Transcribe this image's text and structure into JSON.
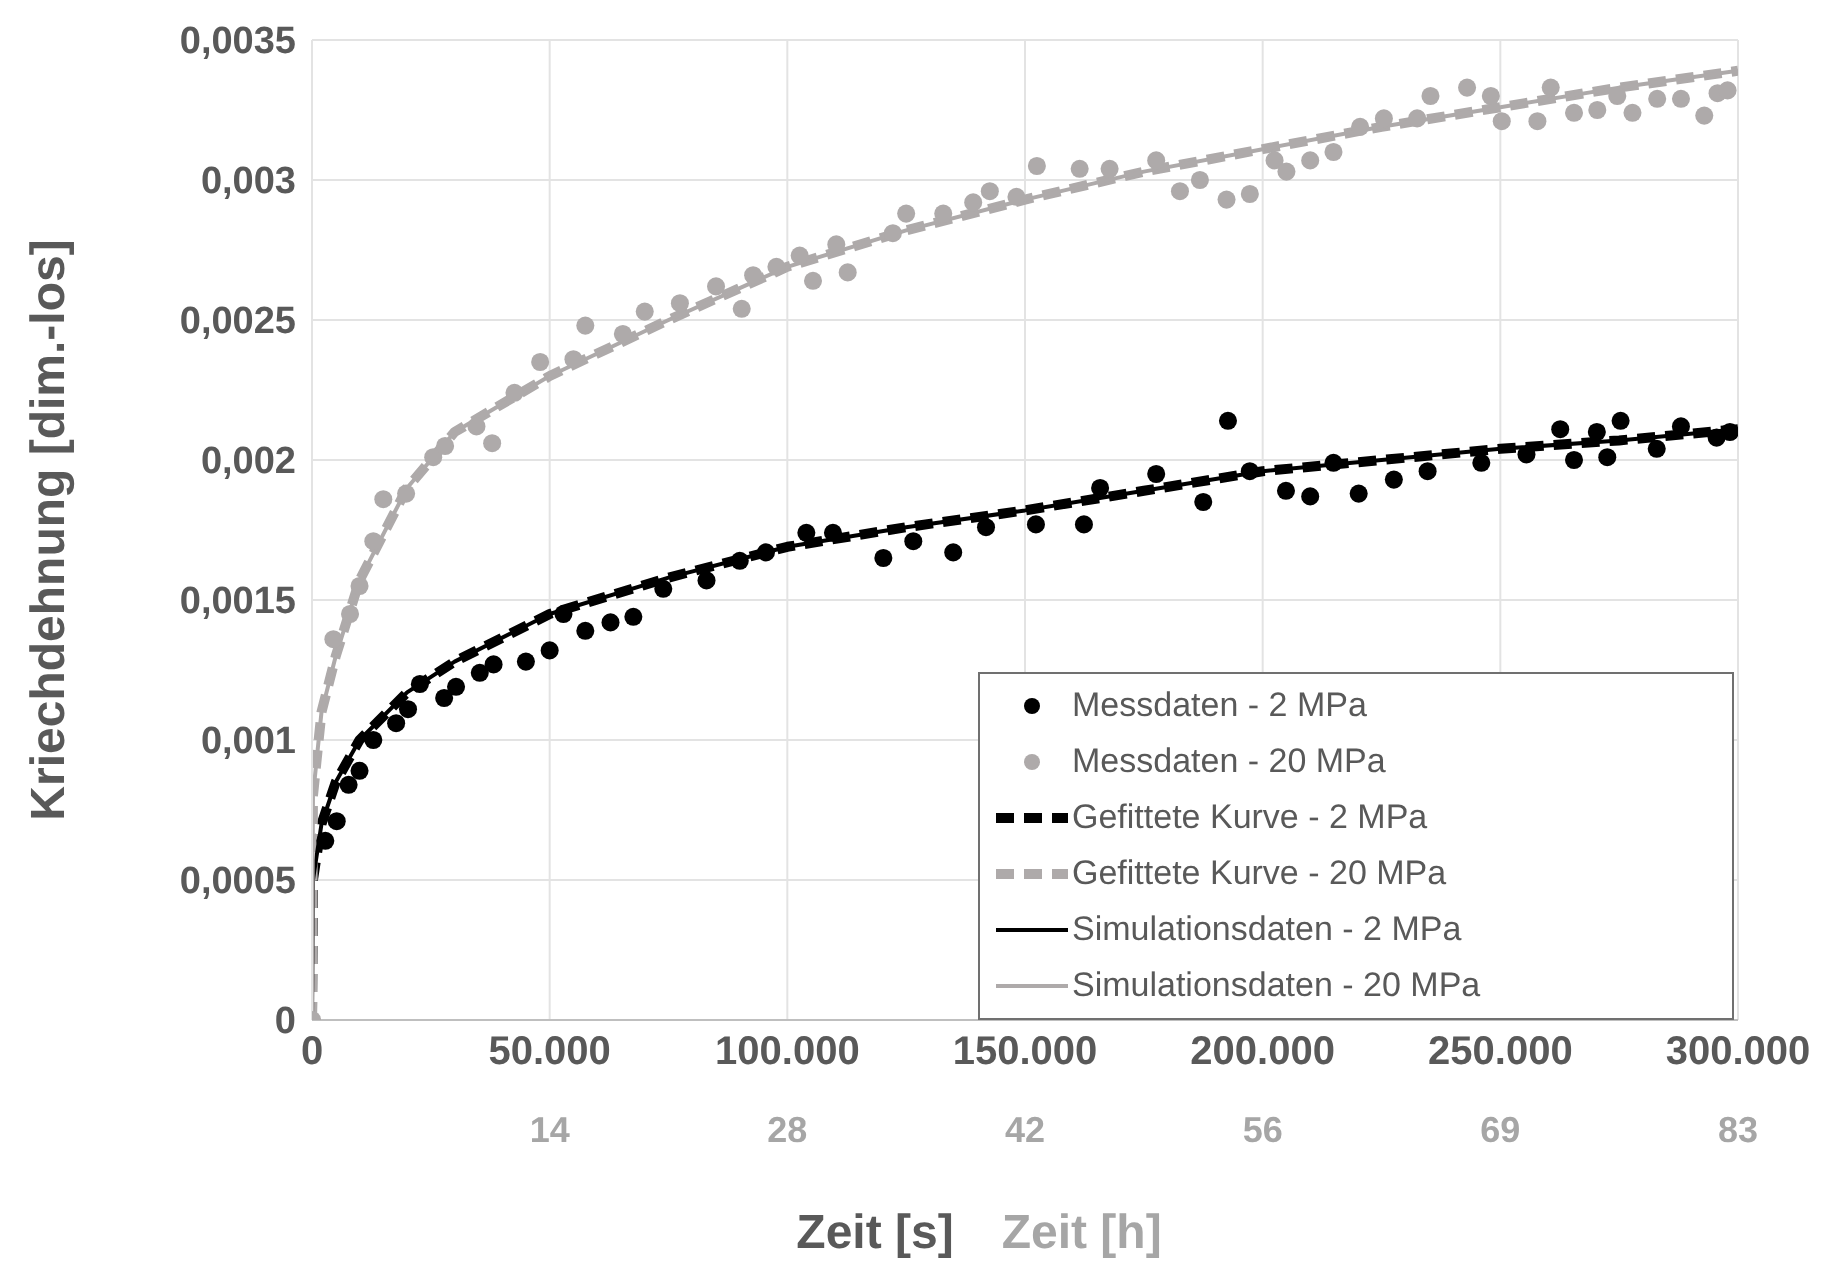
{
  "chart_data": {
    "type": "scatter",
    "xlabel": "Zeit [s]",
    "x2label": "Zeit [h]",
    "ylabel": "Kriechdehnung [dim.-los]",
    "xlim": [
      0,
      300000
    ],
    "xticks": [
      0,
      {
        "value": 50000,
        "label": "50.000"
      },
      {
        "value": 100000,
        "label": "100.000"
      },
      {
        "value": 150000,
        "label": "150.000"
      },
      {
        "value": 200000,
        "label": "200.000"
      },
      {
        "value": 250000,
        "label": "250.000"
      },
      {
        "value": 300000,
        "label": "300.000"
      }
    ],
    "x2lim": [
      0,
      83.333
    ],
    "x2ticks": [
      {
        "value": 13.889,
        "label": "14"
      },
      {
        "value": 27.778,
        "label": "28"
      },
      {
        "value": 41.667,
        "label": "42"
      },
      {
        "value": 55.556,
        "label": "56"
      },
      {
        "value": 69.444,
        "label": "69"
      },
      {
        "value": 83.333,
        "label": "83"
      }
    ],
    "ylim": [
      0,
      0.0035
    ],
    "yticks": [
      0,
      {
        "value": 0.0005,
        "label": "0,0005"
      },
      {
        "value": 0.001,
        "label": "0,001"
      },
      {
        "value": 0.0015,
        "label": "0,0015"
      },
      {
        "value": 0.002,
        "label": "0,002"
      },
      {
        "value": 0.0025,
        "label": "0,0025"
      },
      {
        "value": 0.003,
        "label": "0,003"
      },
      {
        "value": 0.0035,
        "label": "0,0035"
      }
    ],
    "grid": true,
    "legend": "bottom right",
    "series": [
      {
        "name": "Messdaten - 2 MPa",
        "marker": "circle",
        "color": "#000000",
        "x": [
          2800,
          5200,
          7700,
          10000,
          12900,
          17700,
          20200,
          22700,
          27800,
          30300,
          35300,
          38200,
          45000,
          50000,
          52900,
          57500,
          62800,
          67600,
          73900,
          83000,
          90000,
          95500,
          104000,
          109600,
          120200,
          126500,
          134900,
          141800,
          152300,
          162400,
          165800,
          177600,
          187500,
          192700,
          197300,
          204900,
          210000,
          214900,
          220200,
          227600,
          234700,
          246000,
          255500,
          262600,
          265500,
          270300,
          272500,
          275300,
          282900,
          288000,
          295500,
          298300
        ],
        "values": [
          0.00064,
          0.00071,
          0.00084,
          0.00089,
          0.001,
          0.00106,
          0.00111,
          0.0012,
          0.00115,
          0.00119,
          0.00124,
          0.00127,
          0.00128,
          0.00132,
          0.00145,
          0.00139,
          0.00142,
          0.00144,
          0.00154,
          0.00157,
          0.00164,
          0.00167,
          0.00174,
          0.00174,
          0.00165,
          0.00171,
          0.00167,
          0.00176,
          0.00177,
          0.00177,
          0.0019,
          0.00195,
          0.00185,
          0.00214,
          0.00196,
          0.00189,
          0.00187,
          0.00199,
          0.00188,
          0.00193,
          0.00196,
          0.00199,
          0.00202,
          0.00211,
          0.002,
          0.0021,
          0.00201,
          0.00214,
          0.00204,
          0.00212,
          0.00208,
          0.0021
        ]
      },
      {
        "name": "Messdaten - 20 MPa",
        "marker": "circle",
        "color": "#aeaaaa",
        "x": [
          0,
          4500,
          8000,
          10000,
          12900,
          15000,
          19800,
          25500,
          28000,
          34600,
          37900,
          42600,
          48000,
          55000,
          57500,
          65400,
          70000,
          77400,
          85000,
          90400,
          92800,
          97700,
          102600,
          105400,
          110300,
          112700,
          122200,
          125000,
          132800,
          139100,
          142600,
          148200,
          152500,
          161500,
          167800,
          177600,
          182600,
          186800,
          192400,
          197300,
          202500,
          205000,
          210000,
          214900,
          220500,
          225500,
          232500,
          235300,
          243000,
          248000,
          250300,
          257800,
          260600,
          265500,
          270400,
          274600,
          277800,
          283000,
          288000,
          292900,
          295700,
          297800
        ],
        "values": [
          0,
          0.00136,
          0.00145,
          0.00155,
          0.00171,
          0.00186,
          0.00188,
          0.00201,
          0.00205,
          0.00212,
          0.00206,
          0.00224,
          0.00235,
          0.00236,
          0.00248,
          0.00245,
          0.00253,
          0.00256,
          0.00262,
          0.00254,
          0.00266,
          0.00269,
          0.00273,
          0.00264,
          0.00277,
          0.00267,
          0.00281,
          0.00288,
          0.00288,
          0.00292,
          0.00296,
          0.00294,
          0.00305,
          0.00304,
          0.00304,
          0.00307,
          0.00296,
          0.003,
          0.00293,
          0.00295,
          0.00307,
          0.00303,
          0.00307,
          0.0031,
          0.00319,
          0.00322,
          0.00322,
          0.0033,
          0.00333,
          0.0033,
          0.00321,
          0.00321,
          0.00333,
          0.00324,
          0.00325,
          0.0033,
          0.00324,
          0.00329,
          0.00329,
          0.00323,
          0.00331,
          0.00332
        ]
      },
      {
        "name": "Gefittete Kurve - 2 MPa",
        "type": "line",
        "line_style": "dashed",
        "marker": "none",
        "color": "#000000",
        "x": [
          0,
          200,
          2000,
          5000,
          10000,
          20000,
          30000,
          50000,
          75000,
          100000,
          125000,
          150000,
          175000,
          200000,
          225000,
          250000,
          275000,
          300000
        ],
        "values": [
          0,
          0.0005,
          0.0007,
          0.00085,
          0.001,
          0.00117,
          0.00128,
          0.00145,
          0.00158,
          0.00169,
          0.00176,
          0.00182,
          0.00189,
          0.00196,
          0.002,
          0.00204,
          0.00207,
          0.00211
        ]
      },
      {
        "name": "Gefittete Kurve - 20 MPa",
        "type": "line",
        "line_style": "dashed",
        "marker": "none",
        "color": "#aeaaaa",
        "x": [
          0,
          200,
          2000,
          5000,
          10000,
          20000,
          30000,
          50000,
          75000,
          100000,
          125000,
          150000,
          175000,
          200000,
          225000,
          250000,
          275000,
          300000
        ],
        "values": [
          0,
          0.0008,
          0.0011,
          0.0013,
          0.00157,
          0.0019,
          0.0021,
          0.0023,
          0.0025,
          0.00269,
          0.00282,
          0.00293,
          0.00303,
          0.00311,
          0.00319,
          0.00326,
          0.00333,
          0.00339
        ]
      },
      {
        "name": "Simulationsdaten - 2 MPa",
        "type": "line",
        "line_style": "solid",
        "marker": "none",
        "color": "#000000",
        "x": [
          0,
          200,
          2000,
          5000,
          10000,
          20000,
          30000,
          50000,
          75000,
          100000,
          125000,
          150000,
          175000,
          200000,
          225000,
          250000,
          275000,
          300000
        ],
        "values": [
          0,
          0.0005,
          0.0007,
          0.00085,
          0.001,
          0.00117,
          0.00128,
          0.00145,
          0.00158,
          0.00169,
          0.00176,
          0.00182,
          0.00189,
          0.00196,
          0.002,
          0.00204,
          0.00207,
          0.00211
        ]
      },
      {
        "name": "Simulationsdaten - 20 MPa",
        "type": "line",
        "line_style": "solid",
        "marker": "none",
        "color": "#aeaaaa",
        "x": [
          0,
          200,
          2000,
          5000,
          10000,
          20000,
          30000,
          50000,
          75000,
          100000,
          125000,
          150000,
          175000,
          200000,
          225000,
          250000,
          275000,
          300000
        ],
        "values": [
          0,
          0.0008,
          0.0011,
          0.0013,
          0.00157,
          0.0019,
          0.0021,
          0.0023,
          0.0025,
          0.00269,
          0.00282,
          0.00293,
          0.00303,
          0.00311,
          0.00319,
          0.00326,
          0.00333,
          0.00339
        ]
      }
    ]
  }
}
